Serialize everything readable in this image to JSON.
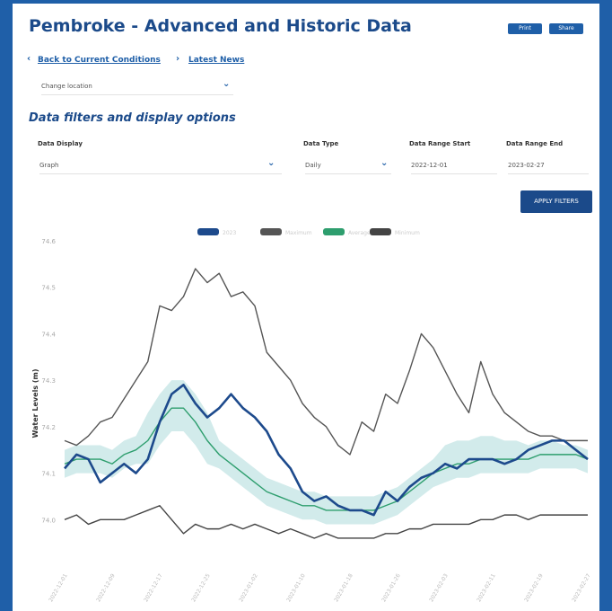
{
  "header": {
    "title": "Pembroke - Advanced and Historic Data",
    "links": [
      "Back to Current Conditions",
      "Latest News"
    ],
    "buttons": [
      "Print",
      "Share"
    ]
  },
  "location": {
    "label": "Change location"
  },
  "filters": {
    "heading": "Data filters and display options",
    "fields": [
      {
        "label": "Data Display",
        "value": "Graph"
      },
      {
        "label": "Data Type",
        "value": "Daily"
      },
      {
        "label": "Data Range Start",
        "value": "2022-12-01"
      },
      {
        "label": "Data Range End",
        "value": "2023-02-27"
      }
    ],
    "apply": "APPLY FILTERS"
  },
  "chart_data": {
    "type": "line",
    "y_label": "Water Levels (m)",
    "categories": [
      "2022-12-01",
      null,
      null,
      null,
      "2022-12-09",
      null,
      null,
      null,
      "2022-12-17",
      null,
      null,
      null,
      "2022-12-25",
      null,
      null,
      null,
      "2023-01-02",
      null,
      null,
      null,
      "2023-01-10",
      null,
      null,
      null,
      "2023-01-18",
      null,
      null,
      null,
      "2023-01-26",
      null,
      null,
      null,
      "2023-02-03",
      null,
      null,
      null,
      "2023-02-11",
      null,
      null,
      null,
      "2023-02-19",
      null,
      null,
      null,
      "2023-02-27"
    ],
    "ylim": [
      73.9,
      74.6
    ],
    "yticks": [
      {
        "value": 74.0,
        "label": "74.0"
      },
      {
        "value": 74.1,
        "label": "74.1"
      },
      {
        "value": 74.2,
        "label": "74.2"
      },
      {
        "value": 74.3,
        "label": "74.3"
      },
      {
        "value": 74.4,
        "label": "74.4"
      },
      {
        "value": 74.5,
        "label": "74.5"
      },
      {
        "value": 74.6,
        "label": "74.6"
      }
    ],
    "grid": false,
    "band": {
      "color": "#bfe3e3",
      "upper": [
        74.15,
        74.16,
        74.16,
        74.16,
        74.15,
        74.17,
        74.18,
        74.23,
        74.27,
        74.3,
        74.3,
        74.27,
        74.23,
        74.17,
        74.15,
        74.13,
        74.11,
        74.09,
        74.08,
        74.07,
        74.06,
        74.06,
        74.05,
        74.05,
        74.05,
        74.05,
        74.05,
        74.06,
        74.07,
        74.09,
        74.11,
        74.13,
        74.16,
        74.17,
        74.17,
        74.18,
        74.18,
        74.17,
        74.17,
        74.16,
        74.17,
        74.17,
        74.16,
        74.16,
        74.15
      ],
      "lower": [
        74.09,
        74.1,
        74.1,
        74.1,
        74.09,
        74.11,
        74.12,
        74.12,
        74.16,
        74.19,
        74.19,
        74.16,
        74.12,
        74.11,
        74.09,
        74.07,
        74.05,
        74.03,
        74.02,
        74.01,
        74.0,
        74.0,
        73.99,
        73.99,
        73.99,
        73.99,
        73.99,
        74.0,
        74.01,
        74.03,
        74.05,
        74.07,
        74.08,
        74.09,
        74.09,
        74.1,
        74.1,
        74.1,
        74.1,
        74.1,
        74.11,
        74.11,
        74.11,
        74.11,
        74.1
      ]
    },
    "series": [
      {
        "name": "2023",
        "color": "#1d4a8c",
        "width": 2.6,
        "values": [
          74.11,
          74.14,
          74.13,
          74.08,
          74.1,
          74.12,
          74.1,
          74.13,
          74.21,
          74.27,
          74.29,
          74.25,
          74.22,
          74.24,
          74.27,
          74.24,
          74.22,
          74.19,
          74.14,
          74.11,
          74.06,
          74.04,
          74.05,
          74.03,
          74.02,
          74.02,
          74.01,
          74.06,
          74.04,
          74.07,
          74.09,
          74.1,
          74.12,
          74.11,
          74.13,
          74.13,
          74.13,
          74.12,
          74.13,
          74.15,
          74.16,
          74.17,
          74.17,
          74.15,
          74.13
        ]
      },
      {
        "name": "Maximum",
        "color": "#555555",
        "width": 1.4,
        "values": [
          74.17,
          74.16,
          74.18,
          74.21,
          74.22,
          74.26,
          74.3,
          74.34,
          74.46,
          74.45,
          74.48,
          74.54,
          74.51,
          74.53,
          74.48,
          74.49,
          74.46,
          74.36,
          74.33,
          74.3,
          74.25,
          74.22,
          74.2,
          74.16,
          74.14,
          74.21,
          74.19,
          74.27,
          74.25,
          74.32,
          74.4,
          74.37,
          74.32,
          74.27,
          74.23,
          74.34,
          74.27,
          74.23,
          74.21,
          74.19,
          74.18,
          74.18,
          74.17,
          74.17,
          74.17
        ]
      },
      {
        "name": "Average",
        "color": "#2e9e6e",
        "width": 1.4,
        "values": [
          74.12,
          74.13,
          74.13,
          74.13,
          74.12,
          74.14,
          74.15,
          74.17,
          74.21,
          74.24,
          74.24,
          74.21,
          74.17,
          74.14,
          74.12,
          74.1,
          74.08,
          74.06,
          74.05,
          74.04,
          74.03,
          74.03,
          74.02,
          74.02,
          74.02,
          74.02,
          74.02,
          74.03,
          74.04,
          74.06,
          74.08,
          74.1,
          74.11,
          74.12,
          74.12,
          74.13,
          74.13,
          74.13,
          74.13,
          74.13,
          74.14,
          74.14,
          74.14,
          74.14,
          74.13
        ]
      },
      {
        "name": "Minimum",
        "color": "#444444",
        "width": 1.4,
        "values": [
          74.0,
          74.01,
          73.99,
          74.0,
          74.0,
          74.0,
          74.01,
          74.02,
          74.03,
          74.0,
          73.97,
          73.99,
          73.98,
          73.98,
          73.99,
          73.98,
          73.99,
          73.98,
          73.97,
          73.98,
          73.97,
          73.96,
          73.97,
          73.96,
          73.96,
          73.96,
          73.96,
          73.97,
          73.97,
          73.98,
          73.98,
          73.99,
          73.99,
          73.99,
          73.99,
          74.0,
          74.0,
          74.01,
          74.01,
          74.0,
          74.01,
          74.01,
          74.01,
          74.01,
          74.01
        ]
      }
    ]
  }
}
